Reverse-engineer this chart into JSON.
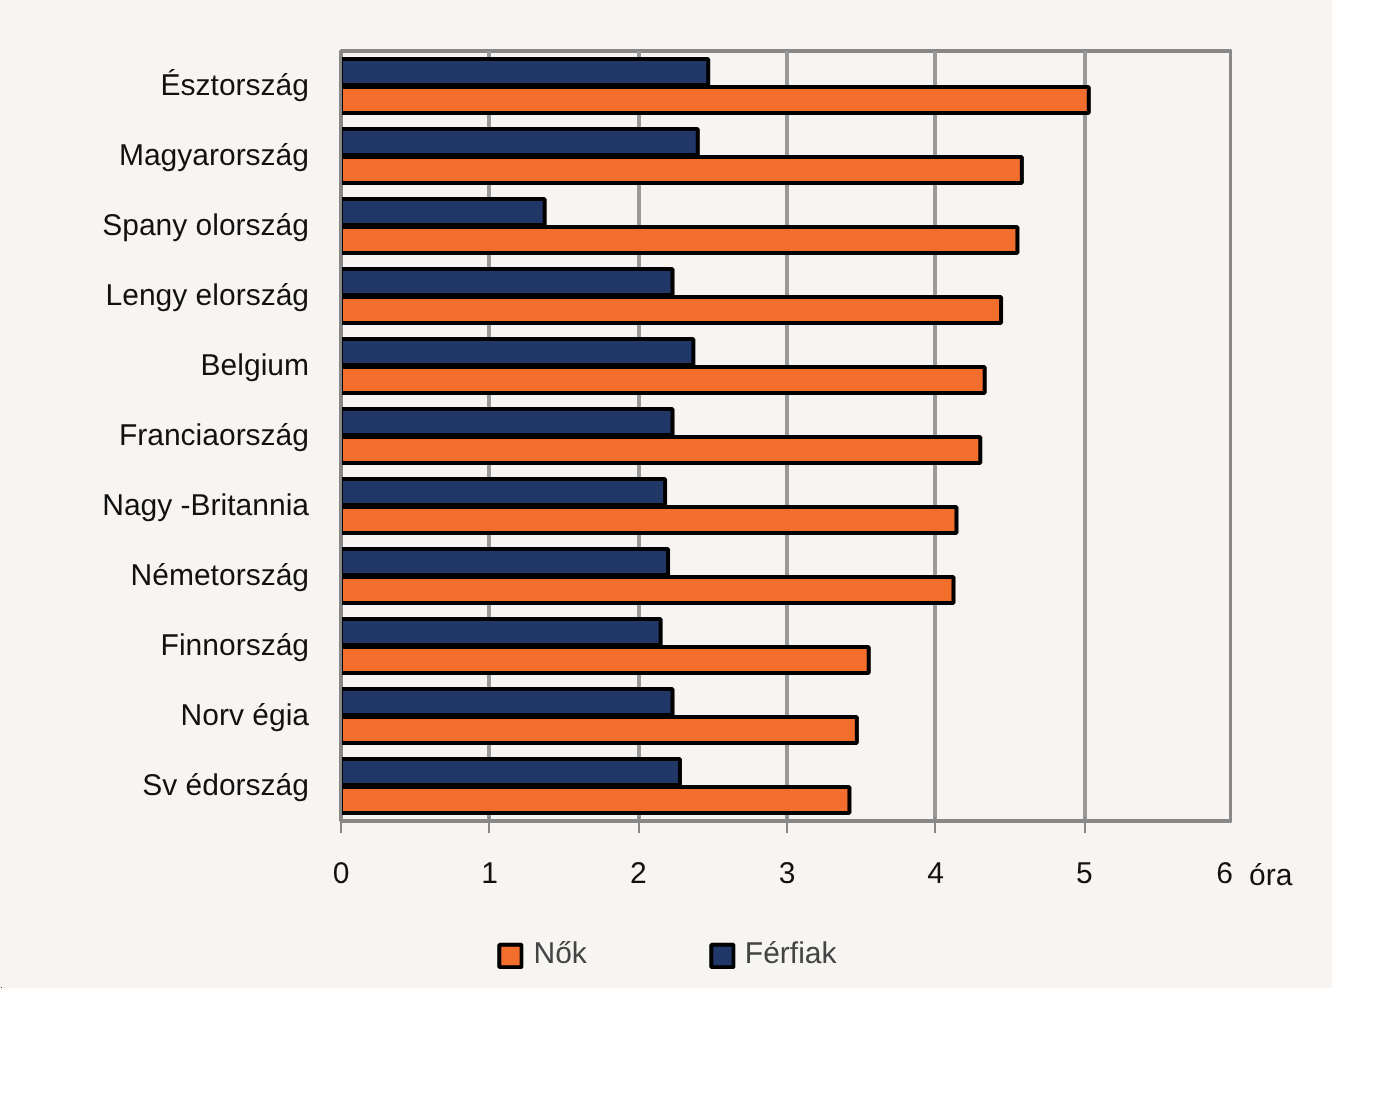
{
  "chart_data": {
    "type": "bar",
    "orientation": "horizontal",
    "xlabel": "óra",
    "categories": [
      "Észtország",
      "Magyarország",
      "Spany olország",
      "Lengy elország",
      "Belgium",
      "Franciaország",
      "Nagy -Britannia",
      "Németország",
      "Finnország",
      "Norv égia",
      "Sv édország"
    ],
    "series": [
      {
        "name": "Férfiak",
        "color": "#203768",
        "values": [
          2.47,
          2.4,
          1.37,
          2.23,
          2.37,
          2.23,
          2.18,
          2.2,
          2.15,
          2.23,
          2.28
        ]
      },
      {
        "name": "Nők",
        "color": "#f26e2c",
        "values": [
          5.03,
          4.58,
          4.55,
          4.44,
          4.33,
          4.3,
          4.14,
          4.12,
          3.55,
          3.47,
          3.42
        ]
      }
    ],
    "xlim": [
      0,
      6
    ],
    "xticks": [
      0,
      1,
      2,
      3,
      4,
      5,
      6
    ],
    "grid": "x",
    "legend": "bottom"
  }
}
